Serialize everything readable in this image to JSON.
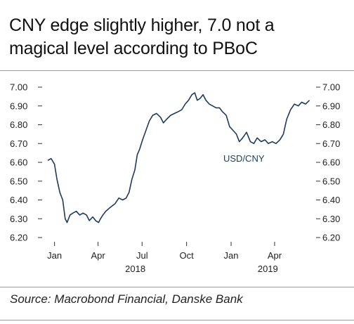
{
  "title_lines": [
    "CNY edge slightly higher, 7.0 not a",
    "magical level according to PBoC"
  ],
  "source": "Source: Macrobond Financial, Danske Bank",
  "colors": {
    "line": "#1d3b5c",
    "text": "#1a1a1a",
    "rule": "#9a9a9a"
  },
  "chart_data": {
    "type": "line",
    "title": "CNY edge slightly higher, 7.0 not a magical level according to PBoC",
    "ylim": [
      6.2,
      7.0
    ],
    "yticks": [
      "7.00",
      "6.90",
      "6.80",
      "6.70",
      "6.60",
      "6.50",
      "6.40",
      "6.30",
      "6.20"
    ],
    "xticks": [
      "Jan",
      "Apr",
      "Jul",
      "Oct",
      "Jan",
      "Apr"
    ],
    "year_labels": [
      "2018",
      "2019"
    ],
    "grid": false,
    "series": [
      {
        "name": "USD/CNY",
        "points": [
          [
            "2018-01-01",
            6.61
          ],
          [
            "2018-01-08",
            6.62
          ],
          [
            "2018-01-15",
            6.59
          ],
          [
            "2018-01-20",
            6.51
          ],
          [
            "2018-01-26",
            6.44
          ],
          [
            "2018-02-01",
            6.4
          ],
          [
            "2018-02-06",
            6.3
          ],
          [
            "2018-02-10",
            6.28
          ],
          [
            "2018-02-16",
            6.32
          ],
          [
            "2018-02-22",
            6.33
          ],
          [
            "2018-03-01",
            6.34
          ],
          [
            "2018-03-08",
            6.32
          ],
          [
            "2018-03-15",
            6.33
          ],
          [
            "2018-03-22",
            6.32
          ],
          [
            "2018-03-28",
            6.29
          ],
          [
            "2018-04-04",
            6.31
          ],
          [
            "2018-04-10",
            6.29
          ],
          [
            "2018-04-16",
            6.28
          ],
          [
            "2018-04-20",
            6.3
          ],
          [
            "2018-04-25",
            6.32
          ],
          [
            "2018-05-01",
            6.34
          ],
          [
            "2018-05-10",
            6.36
          ],
          [
            "2018-05-20",
            6.38
          ],
          [
            "2018-05-28",
            6.41
          ],
          [
            "2018-06-05",
            6.4
          ],
          [
            "2018-06-12",
            6.41
          ],
          [
            "2018-06-18",
            6.44
          ],
          [
            "2018-06-24",
            6.51
          ],
          [
            "2018-06-30",
            6.56
          ],
          [
            "2018-07-05",
            6.64
          ],
          [
            "2018-07-10",
            6.67
          ],
          [
            "2018-07-16",
            6.72
          ],
          [
            "2018-07-23",
            6.77
          ],
          [
            "2018-07-30",
            6.82
          ],
          [
            "2018-08-06",
            6.85
          ],
          [
            "2018-08-14",
            6.86
          ],
          [
            "2018-08-22",
            6.84
          ],
          [
            "2018-08-28",
            6.81
          ],
          [
            "2018-09-04",
            6.83
          ],
          [
            "2018-09-12",
            6.85
          ],
          [
            "2018-09-20",
            6.86
          ],
          [
            "2018-09-28",
            6.87
          ],
          [
            "2018-10-05",
            6.88
          ],
          [
            "2018-10-12",
            6.91
          ],
          [
            "2018-10-19",
            6.93
          ],
          [
            "2018-10-26",
            6.96
          ],
          [
            "2018-11-01",
            6.97
          ],
          [
            "2018-11-06",
            6.93
          ],
          [
            "2018-11-12",
            6.94
          ],
          [
            "2018-11-18",
            6.96
          ],
          [
            "2018-11-24",
            6.93
          ],
          [
            "2018-12-01",
            6.91
          ],
          [
            "2018-12-08",
            6.9
          ],
          [
            "2018-12-15",
            6.89
          ],
          [
            "2018-12-22",
            6.89
          ],
          [
            "2018-12-28",
            6.87
          ],
          [
            "2019-01-05",
            6.85
          ],
          [
            "2019-01-12",
            6.79
          ],
          [
            "2019-01-19",
            6.77
          ],
          [
            "2019-01-26",
            6.75
          ],
          [
            "2019-02-01",
            6.71
          ],
          [
            "2019-02-08",
            6.73
          ],
          [
            "2019-02-16",
            6.76
          ],
          [
            "2019-02-24",
            6.71
          ],
          [
            "2019-03-03",
            6.7
          ],
          [
            "2019-03-10",
            6.73
          ],
          [
            "2019-03-18",
            6.71
          ],
          [
            "2019-03-26",
            6.72
          ],
          [
            "2019-04-02",
            6.7
          ],
          [
            "2019-04-10",
            6.71
          ],
          [
            "2019-04-18",
            6.7
          ],
          [
            "2019-04-26",
            6.72
          ],
          [
            "2019-05-03",
            6.75
          ],
          [
            "2019-05-10",
            6.83
          ],
          [
            "2019-05-18",
            6.88
          ],
          [
            "2019-05-26",
            6.91
          ],
          [
            "2019-06-03",
            6.9
          ],
          [
            "2019-06-10",
            6.92
          ],
          [
            "2019-06-18",
            6.91
          ],
          [
            "2019-06-26",
            6.93
          ]
        ]
      }
    ]
  }
}
